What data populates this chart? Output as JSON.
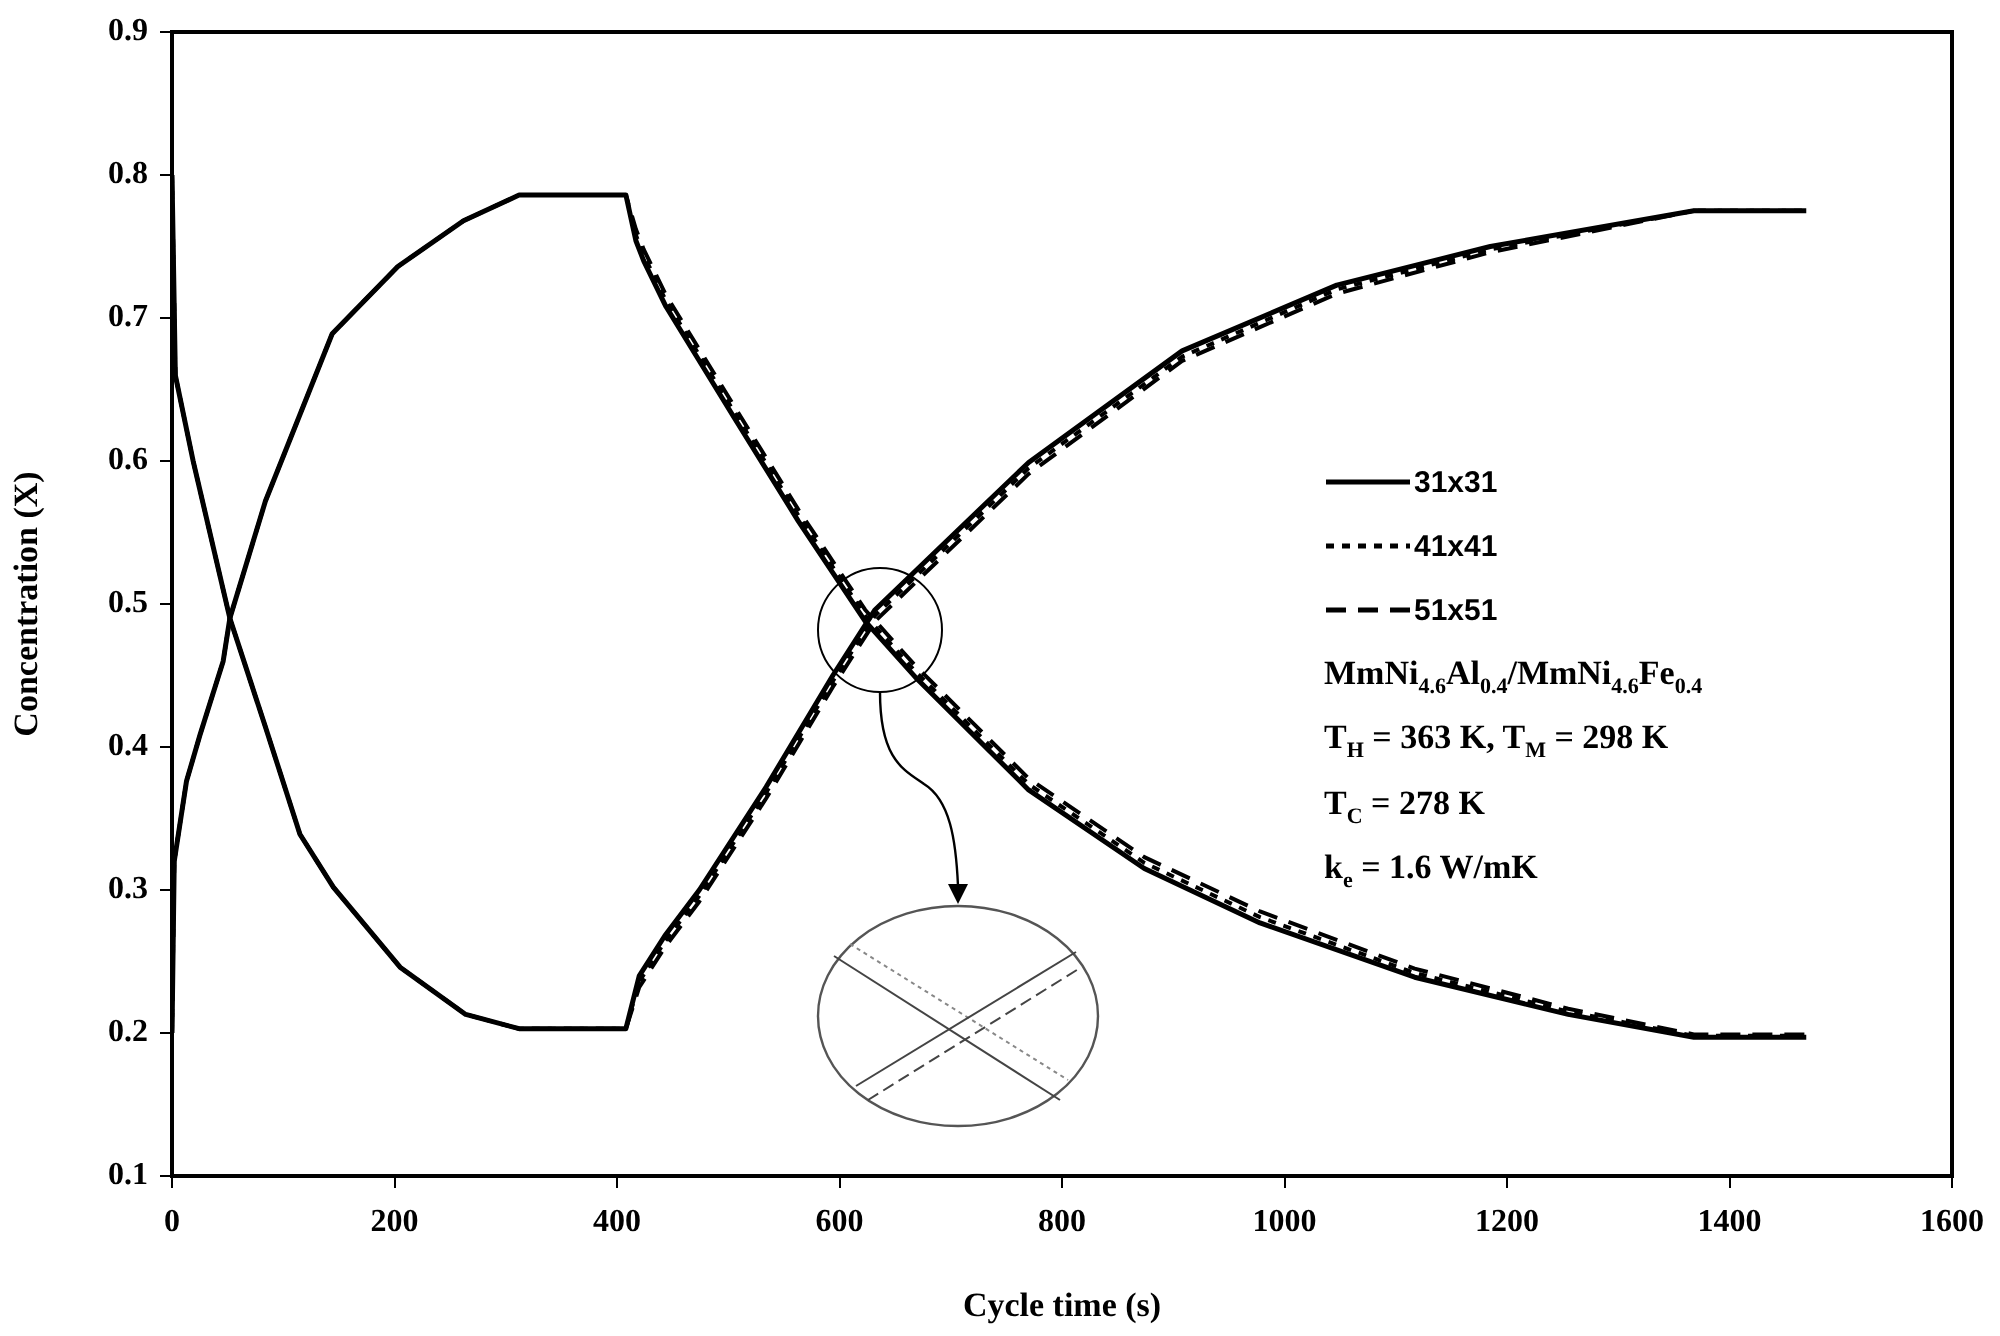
{
  "chart_data": {
    "type": "line",
    "xlabel": "Cycle time (s)",
    "ylabel": "Concentration (X)",
    "xlim": [
      0,
      1600
    ],
    "xticks": [
      0,
      200,
      400,
      600,
      800,
      1000,
      1200,
      1400,
      1600
    ],
    "ylim": [
      0.1,
      0.9
    ],
    "yticks": [
      0.1,
      0.2,
      0.3,
      0.4,
      0.5,
      0.6,
      0.7,
      0.8,
      0.9
    ],
    "grid": false,
    "legend": "right",
    "marker": "none",
    "annotations": [
      "MmNi$_{4.6}$Al$_{0.4}$/MmNi$_{4.6}$Fe$_{0.4}$",
      "T$_{H}$ = 363 K, T$_{M}$ = 298 K",
      "T$_{C}$ = 278 K",
      "k$_{e}$ = 1.6 W/mK"
    ],
    "series": [
      {
        "name": "31x31",
        "color": "#000000",
        "line_style": "solid",
        "x": [
          0,
          3,
          19,
          52,
          84,
          115,
          145,
          205,
          264,
          312,
          408,
          420,
          443,
          474,
          534,
          594,
          632,
          770,
          908,
          1047,
          1185,
          1368,
          1469
        ],
        "values": [
          0.8,
          0.66,
          0.6,
          0.49,
          0.414,
          0.339,
          0.302,
          0.246,
          0.213,
          0.203,
          0.203,
          0.24,
          0.268,
          0.3,
          0.372,
          0.45,
          0.496,
          0.599,
          0.677,
          0.723,
          0.75,
          0.775,
          0.775
        ]
      },
      {
        "color": "#000000",
        "line_style": "solid",
        "x": [
          0,
          2,
          13,
          25,
          46,
          52,
          84,
          144,
          203,
          262,
          312,
          408,
          417,
          424,
          444,
          504,
          563,
          623,
          668,
          770,
          874,
          978,
          1117,
          1255,
          1368,
          1469
        ],
        "values": [
          0.2,
          0.32,
          0.376,
          0.408,
          0.46,
          0.49,
          0.572,
          0.689,
          0.736,
          0.768,
          0.786,
          0.786,
          0.754,
          0.74,
          0.708,
          0.632,
          0.558,
          0.488,
          0.449,
          0.37,
          0.315,
          0.277,
          0.239,
          0.213,
          0.197,
          0.197
        ]
      },
      {
        "name": "41x41",
        "color": "#000000",
        "line_style": "dotted",
        "x": [
          0,
          3,
          19,
          52,
          84,
          115,
          145,
          205,
          264,
          312,
          408,
          420,
          443,
          474,
          534,
          594,
          632,
          770,
          908,
          1047,
          1185,
          1368,
          1469
        ],
        "values": [
          0.8,
          0.66,
          0.6,
          0.49,
          0.414,
          0.339,
          0.302,
          0.246,
          0.213,
          0.203,
          0.203,
          0.236,
          0.264,
          0.296,
          0.368,
          0.446,
          0.492,
          0.595,
          0.673,
          0.72,
          0.748,
          0.775,
          0.775
        ]
      },
      {
        "color": "#000000",
        "line_style": "dotted",
        "x": [
          0,
          2,
          13,
          25,
          46,
          52,
          84,
          144,
          203,
          262,
          312,
          408,
          417,
          424,
          444,
          504,
          563,
          623,
          668,
          770,
          874,
          978,
          1117,
          1255,
          1368,
          1469
        ],
        "values": [
          0.2,
          0.32,
          0.376,
          0.408,
          0.46,
          0.49,
          0.572,
          0.689,
          0.736,
          0.768,
          0.786,
          0.786,
          0.758,
          0.744,
          0.712,
          0.636,
          0.562,
          0.492,
          0.453,
          0.374,
          0.319,
          0.281,
          0.242,
          0.215,
          0.198,
          0.198
        ]
      },
      {
        "name": "51x51",
        "color": "#000000",
        "line_style": "dashed",
        "x": [
          0,
          3,
          19,
          52,
          84,
          115,
          145,
          205,
          264,
          312,
          408,
          420,
          443,
          474,
          534,
          594,
          632,
          770,
          908,
          1047,
          1185,
          1368,
          1469
        ],
        "values": [
          0.8,
          0.66,
          0.6,
          0.49,
          0.414,
          0.339,
          0.302,
          0.246,
          0.213,
          0.203,
          0.203,
          0.232,
          0.26,
          0.292,
          0.364,
          0.442,
          0.488,
          0.591,
          0.67,
          0.717,
          0.746,
          0.775,
          0.775
        ]
      },
      {
        "color": "#000000",
        "line_style": "dashed",
        "x": [
          0,
          2,
          13,
          25,
          46,
          52,
          84,
          144,
          203,
          262,
          312,
          408,
          417,
          424,
          444,
          504,
          563,
          623,
          668,
          770,
          874,
          978,
          1117,
          1255,
          1368,
          1469
        ],
        "values": [
          0.2,
          0.32,
          0.376,
          0.408,
          0.46,
          0.49,
          0.572,
          0.689,
          0.736,
          0.768,
          0.786,
          0.786,
          0.762,
          0.748,
          0.716,
          0.64,
          0.566,
          0.496,
          0.457,
          0.378,
          0.323,
          0.285,
          0.245,
          0.217,
          0.199,
          0.199
        ]
      }
    ]
  }
}
